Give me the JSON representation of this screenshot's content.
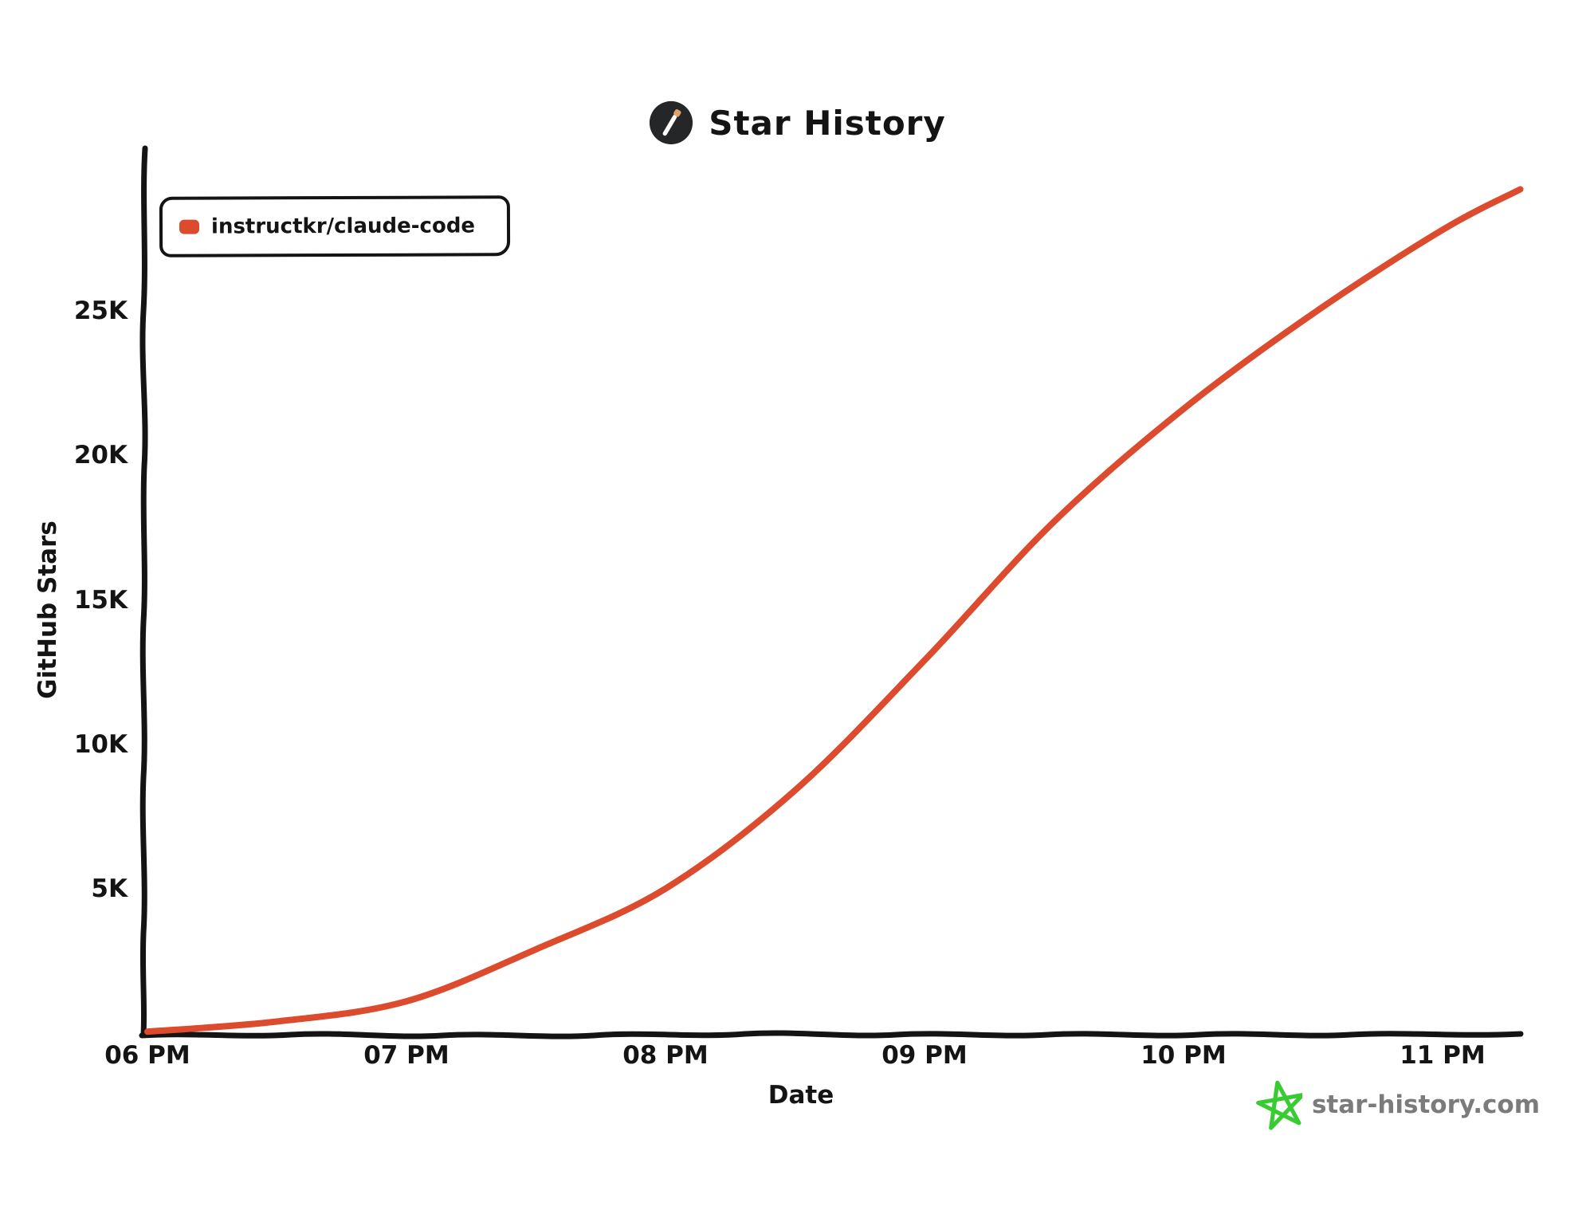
{
  "header": {
    "title": "Star History",
    "logo_bg": "#242628",
    "logo_stick_color": "#ffffff",
    "logo_tip_color": "#e0a266"
  },
  "legend": {
    "items": [
      {
        "label": "instructkr/claude-code",
        "color": "#dc4b2d"
      }
    ]
  },
  "footer": {
    "site_label": "star-history.com",
    "star_icon_color": "#38cc32",
    "text_color": "#7b7b7b"
  },
  "chart_data": {
    "type": "line",
    "title": "Star History",
    "xlabel": "Date",
    "ylabel": "GitHub Stars",
    "x_tick_labels": [
      "06 PM",
      "07 PM",
      "08 PM",
      "09 PM",
      "10 PM",
      "11 PM"
    ],
    "y_tick_labels": [
      "5K",
      "10K",
      "15K",
      "20K",
      "25K"
    ],
    "y_tick_values": [
      5000,
      10000,
      15000,
      20000,
      25000
    ],
    "xlim_hours_after_6pm": [
      0,
      5.45
    ],
    "ylim": [
      0,
      30650
    ],
    "grid": false,
    "legend_position": "top-left",
    "axis_color": "#141414",
    "series": [
      {
        "name": "instructkr/claude-code",
        "color": "#dc4b2d",
        "points": [
          {
            "time": "6:00 PM",
            "hours": 0.0,
            "stars": 50
          },
          {
            "time": "6:30 PM",
            "hours": 0.5,
            "stars": 400
          },
          {
            "time": "7:00 PM",
            "hours": 1.0,
            "stars": 1100
          },
          {
            "time": "7:30 PM",
            "hours": 1.5,
            "stars": 2900
          },
          {
            "time": "8:00 PM",
            "hours": 2.0,
            "stars": 5000
          },
          {
            "time": "8:30 PM",
            "hours": 2.5,
            "stars": 8400
          },
          {
            "time": "9:00 PM",
            "hours": 3.0,
            "stars": 12900
          },
          {
            "time": "9:30 PM",
            "hours": 3.5,
            "stars": 17700
          },
          {
            "time": "10:00 PM",
            "hours": 4.0,
            "stars": 21600
          },
          {
            "time": "10:30 PM",
            "hours": 4.5,
            "stars": 24900
          },
          {
            "time": "11:00 PM",
            "hours": 5.0,
            "stars": 27800
          },
          {
            "time": "11:18 PM",
            "hours": 5.3,
            "stars": 29200
          }
        ]
      }
    ]
  }
}
